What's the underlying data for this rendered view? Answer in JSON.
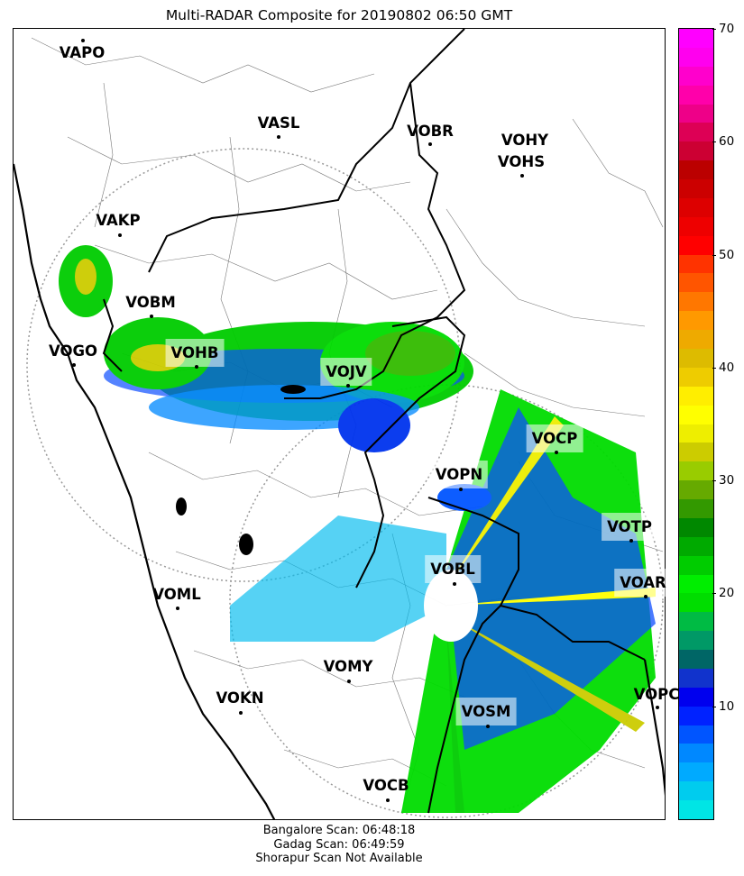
{
  "title": "Multi-RADAR Composite for 20190802 06:50 GMT",
  "footer": {
    "line1": "Bangalore Scan: 06:48:18",
    "line2": "Gadag Scan: 06:49:59",
    "line3": "Shorapur Scan Not Available"
  },
  "colorbar": {
    "min": 0,
    "max": 70,
    "ticks": [
      "10",
      "20",
      "30",
      "40",
      "50",
      "60",
      "70"
    ],
    "colors": [
      "#00e5e5",
      "#00ccee",
      "#00aaff",
      "#0088ff",
      "#0055ff",
      "#0022ff",
      "#0000ee",
      "#1133cc",
      "#006666",
      "#009966",
      "#00bb44",
      "#00dd00",
      "#00ee00",
      "#00cc00",
      "#00aa00",
      "#008800",
      "#339900",
      "#66aa00",
      "#99cc00",
      "#cccc00",
      "#eeee00",
      "#ffff00",
      "#ffee00",
      "#eecc00",
      "#ddbb00",
      "#eeaa00",
      "#ff9900",
      "#ff7700",
      "#ff5500",
      "#ff3300",
      "#ff0000",
      "#ee0000",
      "#dd0000",
      "#cc0000",
      "#bb0000",
      "#cc0033",
      "#dd0055",
      "#ee0088",
      "#ff00aa",
      "#ff00cc",
      "#ff00ee",
      "#ff00ff"
    ]
  },
  "stations": [
    {
      "code": "VAPO"
    },
    {
      "code": "VASL"
    },
    {
      "code": "VOBR"
    },
    {
      "code": "VOHY"
    },
    {
      "code": "VOHS"
    },
    {
      "code": "VAKP"
    },
    {
      "code": "VOBM"
    },
    {
      "code": "VOGO"
    },
    {
      "code": "VOHB"
    },
    {
      "code": "VOJV"
    },
    {
      "code": "VOCP"
    },
    {
      "code": "VOPN"
    },
    {
      "code": "VOTP"
    },
    {
      "code": "VOBL"
    },
    {
      "code": "VOAR"
    },
    {
      "code": "VOML"
    },
    {
      "code": "VOMY"
    },
    {
      "code": "VOKN"
    },
    {
      "code": "VOPC"
    },
    {
      "code": "VOSM"
    },
    {
      "code": "VOCB"
    }
  ]
}
